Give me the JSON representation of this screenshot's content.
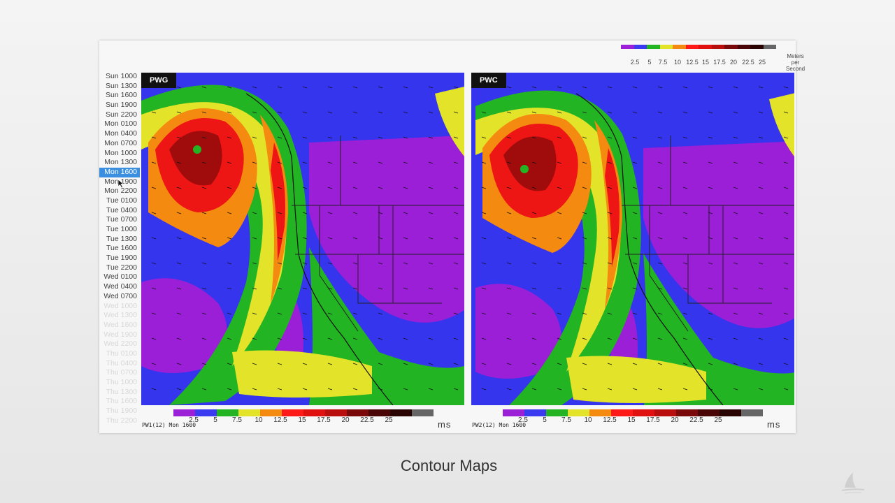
{
  "timeline": {
    "selected_index": 10,
    "items": [
      "Sun 1000",
      "Sun 1300",
      "Sun 1600",
      "Sun 1900",
      "Sun 2200",
      "Mon 0100",
      "Mon 0400",
      "Mon 0700",
      "Mon 1000",
      "Mon 1300",
      "Mon 1600",
      "Mon 1900",
      "Mon 2200",
      "Tue 0100",
      "Tue 0400",
      "Tue 0700",
      "Tue 1000",
      "Tue 1300",
      "Tue 1600",
      "Tue 1900",
      "Tue 2200",
      "Wed 0100",
      "Wed 0400",
      "Wed 0700",
      "Wed 1000",
      "Wed 1300",
      "Wed 1600",
      "Wed 1900",
      "Wed 2200",
      "Thu 0100",
      "Thu 0400",
      "Thu 0700",
      "Thu 1000",
      "Thu 1300",
      "Thu 1600",
      "Thu 1900",
      "Thu 2200"
    ],
    "available_count": 24
  },
  "legend": {
    "colors": [
      "#9b1fd6",
      "#3a3af0",
      "#22b422",
      "#e3e32a",
      "#f58a10",
      "#ff1a1a",
      "#e01010",
      "#b80e0e",
      "#7a0a0a",
      "#4a0606",
      "#2a0303",
      "#666666"
    ],
    "ticks": [
      "2.5",
      "5",
      "7.5",
      "10",
      "12.5",
      "15",
      "17.5",
      "20",
      "22.5",
      "25"
    ],
    "unit_top": [
      "Meters",
      "per",
      "Second"
    ],
    "unit_bottom": "ms"
  },
  "maps": [
    {
      "label": "PWG",
      "caption": "PW1(12) Mon 1600"
    },
    {
      "label": "PWC",
      "caption": "PW2(12) Mon 1600"
    }
  ],
  "title": "Contour Maps"
}
